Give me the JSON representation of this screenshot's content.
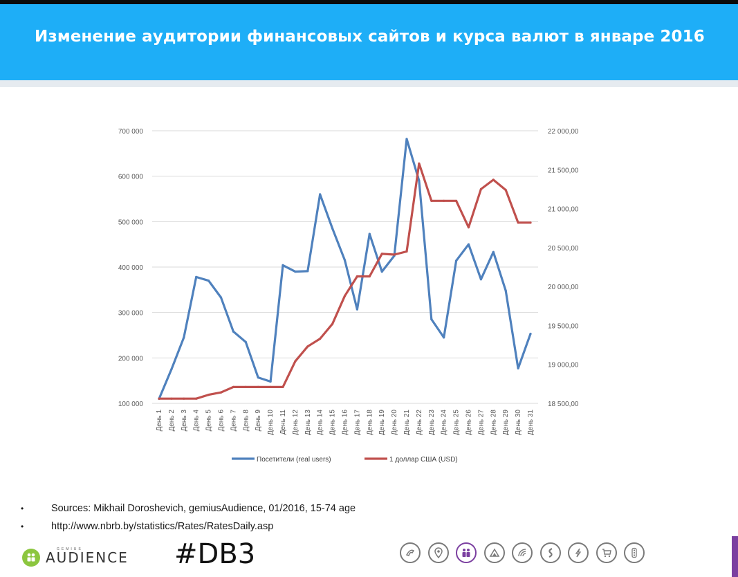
{
  "header": {
    "title": "Изменение аудитории финансовых сайтов и курса валют в январе 2016"
  },
  "chart_data": {
    "type": "line",
    "title": "",
    "categories": [
      "День 1",
      "День 2",
      "День 3",
      "День 4",
      "День 5",
      "День 6",
      "День 7",
      "День 8",
      "День 9",
      "День 10",
      "День 11",
      "День 12",
      "День 13",
      "День 14",
      "День 15",
      "День 16",
      "День 17",
      "День 18",
      "День 19",
      "День 20",
      "День 21",
      "День 22",
      "День 23",
      "День 24",
      "День 25",
      "День 26",
      "День 27",
      "День 28",
      "День 29",
      "День 30",
      "День 31"
    ],
    "y_left": {
      "ticks": [
        "700 000",
        "600 000",
        "500 000",
        "400 000",
        "300 000",
        "200 000",
        "100 000"
      ],
      "ylim": [
        100000,
        700000
      ]
    },
    "y_right": {
      "ticks": [
        "22 000,00",
        "21 500,00",
        "21 000,00",
        "20 500,00",
        "20 000,00",
        "19 500,00",
        "19 000,00",
        "18 500,00"
      ],
      "ylim": [
        18500,
        22000
      ]
    },
    "grid": true,
    "legend_position": "bottom",
    "series": [
      {
        "name": "Посетители (real users)",
        "axis": "left",
        "color": "#4f81bd",
        "values": [
          110000,
          175000,
          245000,
          378000,
          370000,
          333000,
          258000,
          235000,
          157000,
          148000,
          404000,
          390000,
          391000,
          560000,
          485000,
          415000,
          307000,
          473000,
          390000,
          425000,
          682000,
          590000,
          285000,
          245000,
          414000,
          450000,
          373000,
          433000,
          348000,
          177000,
          253000
        ]
      },
      {
        "name": "1 доллар США (USD)",
        "axis": "right",
        "color": "#c0504d",
        "values": [
          18560,
          18560,
          18560,
          18560,
          18610,
          18640,
          18710,
          18710,
          18710,
          18710,
          18710,
          19040,
          19230,
          19330,
          19520,
          19880,
          20130,
          20130,
          20420,
          20410,
          20450,
          21580,
          21100,
          21100,
          21100,
          20760,
          21250,
          21370,
          21240,
          20820,
          20820
        ]
      }
    ]
  },
  "sources": [
    "Sources: Mikhail Doroshevich, gemiusAudience,  01/2016, 15-74 age",
    "http://www.nbrb.by/statistics/Rates/RatesDaily.asp"
  ],
  "footer": {
    "logo_small": "GEMIUS",
    "logo_text": "AUDIENCE",
    "hashtag": "#DB3",
    "nav_icons": [
      "telecom-icon",
      "location-pin-icon",
      "audience-icon",
      "mountain-icon",
      "wifi-icon",
      "finance-icon",
      "energy-icon",
      "shopping-cart-icon",
      "traffic-light-icon"
    ],
    "active_icon": "audience-icon",
    "accent_color": "#7b3fa0"
  }
}
